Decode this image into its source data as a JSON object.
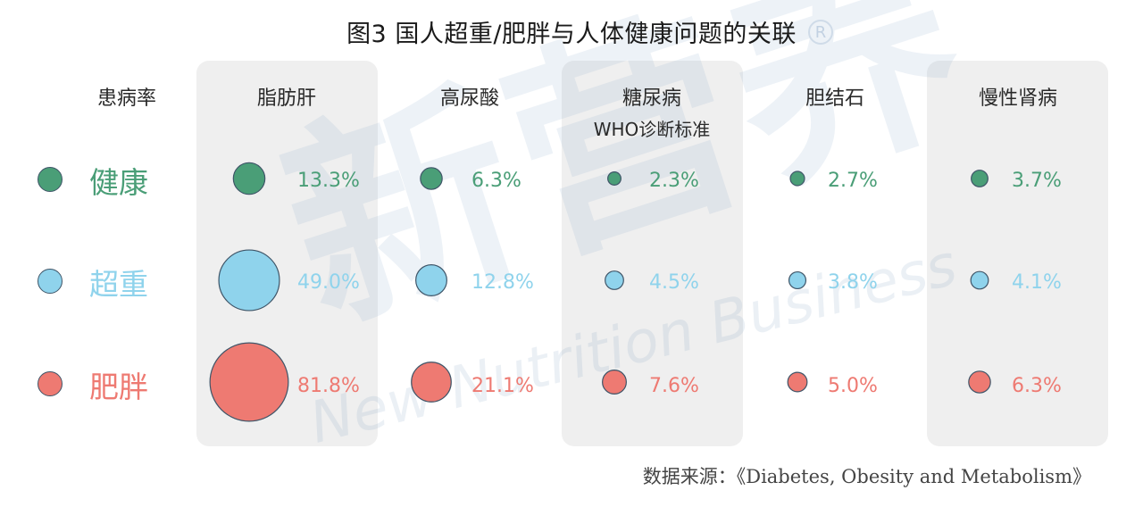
{
  "title": "图3 国人超重/肥胖与人体健康问题的关联",
  "row_header": "患病率",
  "source": "数据来源：《Diabetes, Obesity and Metabolism》",
  "watermark": {
    "cn": "新营养",
    "en": "New Nutrition Business"
  },
  "colors": {
    "healthy": "#4a9e77",
    "overweight": "#8fd3ec",
    "obese": "#ee7a72",
    "panel": "#efefef"
  },
  "chart_data": {
    "type": "bubble",
    "title": "图3 国人超重/肥胖与人体健康问题的关联",
    "categories": [
      {
        "name": "脂肪肝",
        "sub": ""
      },
      {
        "name": "高尿酸",
        "sub": ""
      },
      {
        "name": "糖尿病",
        "sub": "WHO诊断标准"
      },
      {
        "name": "胆结石",
        "sub": ""
      },
      {
        "name": "慢性肾病",
        "sub": ""
      }
    ],
    "series": [
      {
        "name": "健康",
        "values": [
          13.3,
          6.3,
          2.3,
          2.7,
          3.7
        ],
        "labels": [
          "13.3%",
          "6.3%",
          "2.3%",
          "2.7%",
          "3.7%"
        ]
      },
      {
        "name": "超重",
        "values": [
          49.0,
          12.8,
          4.5,
          3.8,
          4.1
        ],
        "labels": [
          "49.0%",
          "12.8%",
          "4.5%",
          "3.8%",
          "4.1%"
        ]
      },
      {
        "name": "肥胖",
        "values": [
          81.8,
          21.1,
          7.6,
          5.0,
          6.3
        ],
        "labels": [
          "81.8%",
          "21.1%",
          "7.6%",
          "5.0%",
          "6.3%"
        ]
      }
    ]
  }
}
